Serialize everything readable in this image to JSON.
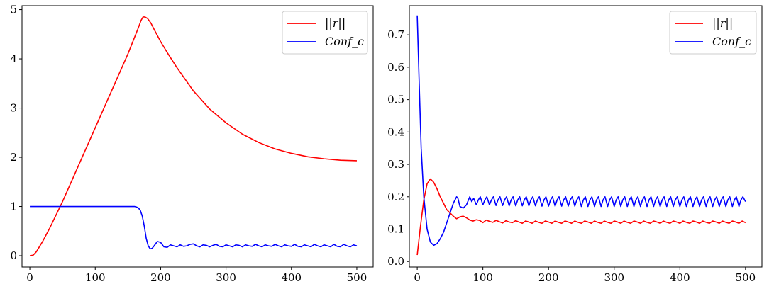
{
  "chart_data": [
    {
      "type": "line",
      "xlim": [
        -12,
        525
      ],
      "ylim": [
        -0.23,
        5.08
      ],
      "xticks": [
        0,
        100,
        200,
        300,
        400,
        500
      ],
      "yticks": [
        0,
        1,
        2,
        3,
        4,
        5
      ],
      "xtick_labels": [
        "0",
        "100",
        "200",
        "300",
        "400",
        "500"
      ],
      "ytick_labels": [
        "0",
        "1",
        "2",
        "3",
        "4",
        "5"
      ],
      "grid": false,
      "legend_position": "upper right",
      "series": [
        {
          "name": "||r||",
          "color": "#ff0000",
          "x": [
            0,
            5,
            10,
            20,
            30,
            50,
            75,
            100,
            125,
            150,
            165,
            170,
            173,
            176,
            180,
            185,
            190,
            200,
            210,
            225,
            250,
            275,
            300,
            325,
            350,
            375,
            400,
            425,
            450,
            475,
            500
          ],
          "y": [
            0,
            0.01,
            0.08,
            0.3,
            0.55,
            1.1,
            1.85,
            2.6,
            3.35,
            4.1,
            4.6,
            4.78,
            4.85,
            4.85,
            4.82,
            4.73,
            4.6,
            4.35,
            4.13,
            3.82,
            3.35,
            2.98,
            2.7,
            2.47,
            2.3,
            2.17,
            2.08,
            2.01,
            1.97,
            1.94,
            1.93
          ]
        },
        {
          "name": "Conf_c",
          "color": "#0000ff",
          "x": [
            0,
            160,
            163,
            166,
            169,
            172,
            175,
            178,
            181,
            184,
            187,
            190,
            195,
            200,
            205,
            210,
            215,
            220,
            225,
            230,
            235,
            240,
            245,
            250,
            255,
            260,
            265,
            270,
            275,
            280,
            285,
            290,
            295,
            300,
            305,
            310,
            315,
            320,
            325,
            330,
            335,
            340,
            345,
            350,
            355,
            360,
            365,
            370,
            375,
            380,
            385,
            390,
            395,
            400,
            405,
            410,
            415,
            420,
            425,
            430,
            435,
            440,
            445,
            450,
            455,
            460,
            465,
            470,
            475,
            480,
            485,
            490,
            495,
            500
          ],
          "y": [
            1.0,
            1.0,
            0.99,
            0.97,
            0.92,
            0.8,
            0.6,
            0.35,
            0.2,
            0.14,
            0.15,
            0.2,
            0.29,
            0.27,
            0.18,
            0.17,
            0.22,
            0.2,
            0.18,
            0.22,
            0.19,
            0.2,
            0.23,
            0.24,
            0.2,
            0.18,
            0.22,
            0.21,
            0.18,
            0.21,
            0.23,
            0.19,
            0.18,
            0.22,
            0.2,
            0.18,
            0.22,
            0.21,
            0.18,
            0.22,
            0.2,
            0.19,
            0.23,
            0.2,
            0.18,
            0.22,
            0.2,
            0.19,
            0.23,
            0.2,
            0.18,
            0.22,
            0.2,
            0.19,
            0.23,
            0.19,
            0.18,
            0.22,
            0.2,
            0.18,
            0.23,
            0.2,
            0.18,
            0.22,
            0.2,
            0.18,
            0.23,
            0.19,
            0.18,
            0.23,
            0.2,
            0.18,
            0.22,
            0.2
          ]
        }
      ]
    },
    {
      "type": "line",
      "xlim": [
        -12,
        525
      ],
      "ylim": [
        -0.017,
        0.79
      ],
      "xticks": [
        0,
        100,
        200,
        300,
        400,
        500
      ],
      "yticks": [
        0.0,
        0.1,
        0.2,
        0.3,
        0.4,
        0.5,
        0.6,
        0.7
      ],
      "xtick_labels": [
        "0",
        "100",
        "200",
        "300",
        "400",
        "500"
      ],
      "ytick_labels": [
        "0.0",
        "0.1",
        "0.2",
        "0.3",
        "0.4",
        "0.5",
        "0.6",
        "0.7"
      ],
      "grid": false,
      "legend_position": "upper right",
      "series": [
        {
          "name": "||r||",
          "color": "#ff0000",
          "x": [
            0,
            5,
            10,
            15,
            20,
            25,
            30,
            35,
            40,
            45,
            50,
            55,
            60,
            65,
            70,
            75,
            80,
            85,
            90,
            95,
            100,
            105,
            110,
            115,
            120,
            125,
            130,
            135,
            140,
            145,
            150,
            155,
            160,
            165,
            170,
            175,
            180,
            185,
            190,
            195,
            200,
            205,
            210,
            215,
            220,
            225,
            230,
            235,
            240,
            245,
            250,
            255,
            260,
            265,
            270,
            275,
            280,
            285,
            290,
            295,
            300,
            305,
            310,
            315,
            320,
            325,
            330,
            335,
            340,
            345,
            350,
            355,
            360,
            365,
            370,
            375,
            380,
            385,
            390,
            395,
            400,
            405,
            410,
            415,
            420,
            425,
            430,
            435,
            440,
            445,
            450,
            455,
            460,
            465,
            470,
            475,
            480,
            485,
            490,
            495,
            500
          ],
          "y": [
            0.02,
            0.11,
            0.19,
            0.24,
            0.255,
            0.245,
            0.225,
            0.2,
            0.18,
            0.16,
            0.15,
            0.14,
            0.132,
            0.138,
            0.14,
            0.135,
            0.128,
            0.125,
            0.129,
            0.127,
            0.12,
            0.128,
            0.124,
            0.121,
            0.127,
            0.123,
            0.119,
            0.126,
            0.122,
            0.12,
            0.126,
            0.122,
            0.118,
            0.125,
            0.122,
            0.118,
            0.125,
            0.121,
            0.118,
            0.125,
            0.122,
            0.118,
            0.125,
            0.121,
            0.118,
            0.125,
            0.122,
            0.118,
            0.125,
            0.121,
            0.118,
            0.125,
            0.122,
            0.118,
            0.125,
            0.121,
            0.118,
            0.125,
            0.121,
            0.118,
            0.125,
            0.122,
            0.118,
            0.125,
            0.121,
            0.118,
            0.125,
            0.122,
            0.118,
            0.125,
            0.121,
            0.118,
            0.125,
            0.122,
            0.118,
            0.125,
            0.121,
            0.118,
            0.125,
            0.122,
            0.118,
            0.125,
            0.121,
            0.118,
            0.125,
            0.122,
            0.118,
            0.125,
            0.121,
            0.118,
            0.125,
            0.122,
            0.118,
            0.125,
            0.121,
            0.118,
            0.125,
            0.122,
            0.118,
            0.125,
            0.12
          ]
        },
        {
          "name": "Conf_c",
          "color": "#0000ff",
          "x": [
            0,
            3,
            6,
            10,
            15,
            20,
            25,
            30,
            35,
            40,
            45,
            50,
            55,
            60,
            62,
            65,
            70,
            75,
            80,
            83,
            86,
            90,
            93,
            96,
            100,
            103,
            106,
            110,
            113,
            116,
            120,
            123,
            126,
            130,
            133,
            136,
            140,
            143,
            146,
            150,
            153,
            156,
            160,
            163,
            166,
            170,
            173,
            176,
            180,
            183,
            186,
            190,
            193,
            196,
            200,
            203,
            206,
            210,
            213,
            216,
            220,
            223,
            226,
            230,
            233,
            236,
            240,
            243,
            246,
            250,
            253,
            256,
            260,
            263,
            266,
            270,
            273,
            276,
            280,
            283,
            286,
            290,
            293,
            296,
            300,
            303,
            306,
            310,
            313,
            316,
            320,
            323,
            326,
            330,
            333,
            336,
            340,
            343,
            346,
            350,
            353,
            356,
            360,
            363,
            366,
            370,
            373,
            376,
            380,
            383,
            386,
            390,
            393,
            396,
            400,
            403,
            406,
            410,
            413,
            416,
            420,
            423,
            426,
            430,
            433,
            436,
            440,
            443,
            446,
            450,
            453,
            456,
            460,
            463,
            466,
            470,
            473,
            476,
            480,
            483,
            486,
            490,
            493,
            496,
            500
          ],
          "y": [
            0.76,
            0.55,
            0.35,
            0.2,
            0.1,
            0.06,
            0.05,
            0.055,
            0.07,
            0.09,
            0.12,
            0.15,
            0.18,
            0.2,
            0.195,
            0.17,
            0.165,
            0.175,
            0.2,
            0.185,
            0.195,
            0.175,
            0.19,
            0.2,
            0.175,
            0.19,
            0.2,
            0.175,
            0.19,
            0.2,
            0.173,
            0.19,
            0.2,
            0.173,
            0.19,
            0.2,
            0.172,
            0.19,
            0.2,
            0.172,
            0.19,
            0.2,
            0.172,
            0.19,
            0.2,
            0.172,
            0.19,
            0.2,
            0.172,
            0.19,
            0.2,
            0.171,
            0.19,
            0.2,
            0.171,
            0.19,
            0.2,
            0.171,
            0.19,
            0.2,
            0.171,
            0.19,
            0.2,
            0.171,
            0.19,
            0.2,
            0.171,
            0.19,
            0.2,
            0.17,
            0.19,
            0.2,
            0.17,
            0.19,
            0.2,
            0.17,
            0.19,
            0.2,
            0.17,
            0.19,
            0.2,
            0.17,
            0.19,
            0.2,
            0.17,
            0.19,
            0.2,
            0.17,
            0.19,
            0.2,
            0.17,
            0.19,
            0.2,
            0.17,
            0.19,
            0.2,
            0.17,
            0.19,
            0.2,
            0.17,
            0.19,
            0.2,
            0.17,
            0.19,
            0.2,
            0.17,
            0.19,
            0.2,
            0.17,
            0.19,
            0.2,
            0.17,
            0.19,
            0.2,
            0.17,
            0.19,
            0.2,
            0.17,
            0.19,
            0.2,
            0.17,
            0.19,
            0.2,
            0.17,
            0.19,
            0.2,
            0.17,
            0.19,
            0.2,
            0.17,
            0.19,
            0.2,
            0.17,
            0.19,
            0.2,
            0.17,
            0.19,
            0.2,
            0.17,
            0.19,
            0.2,
            0.17,
            0.19,
            0.2,
            0.185
          ]
        }
      ]
    }
  ]
}
